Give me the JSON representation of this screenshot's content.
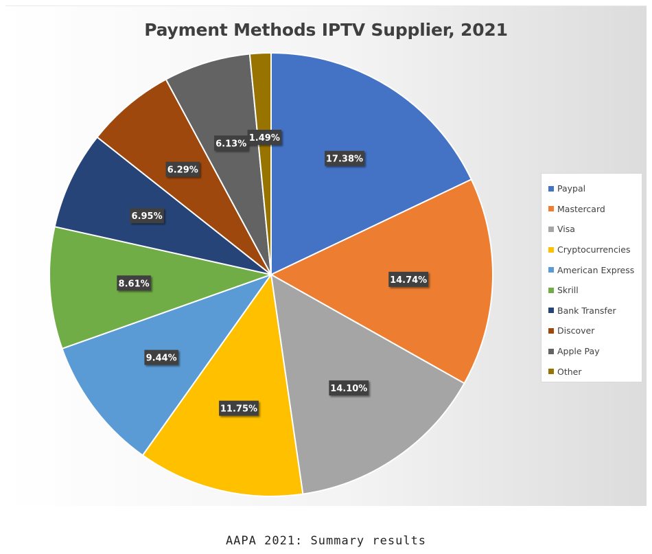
{
  "caption": "AAPA 2021: Summary results",
  "chart_data": {
    "type": "pie",
    "title": "Payment Methods IPTV Supplier, 2021",
    "legend_position": "right",
    "slices": [
      {
        "label": "Paypal",
        "value": 17.38,
        "display": "17.38%",
        "color": "#4472C4"
      },
      {
        "label": "Mastercard",
        "value": 14.74,
        "display": "14.74%",
        "color": "#ED7D31"
      },
      {
        "label": "Visa",
        "value": 14.1,
        "display": "14.10%",
        "color": "#A5A5A5"
      },
      {
        "label": "Cryptocurrencies",
        "value": 11.75,
        "display": "11.75%",
        "color": "#FFC000"
      },
      {
        "label": "American Express",
        "value": 9.44,
        "display": "9.44%",
        "color": "#5B9BD5"
      },
      {
        "label": "Skrill",
        "value": 8.61,
        "display": "8.61%",
        "color": "#70AD47"
      },
      {
        "label": "Bank Transfer",
        "value": 6.95,
        "display": "6.95%",
        "color": "#264478"
      },
      {
        "label": "Discover",
        "value": 6.29,
        "display": "6.29%",
        "color": "#9E480E"
      },
      {
        "label": "Apple Pay",
        "value": 6.13,
        "display": "6.13%",
        "color": "#636363"
      },
      {
        "label": "Other",
        "value": 1.49,
        "display": "1.49%",
        "color": "#997300"
      }
    ]
  }
}
